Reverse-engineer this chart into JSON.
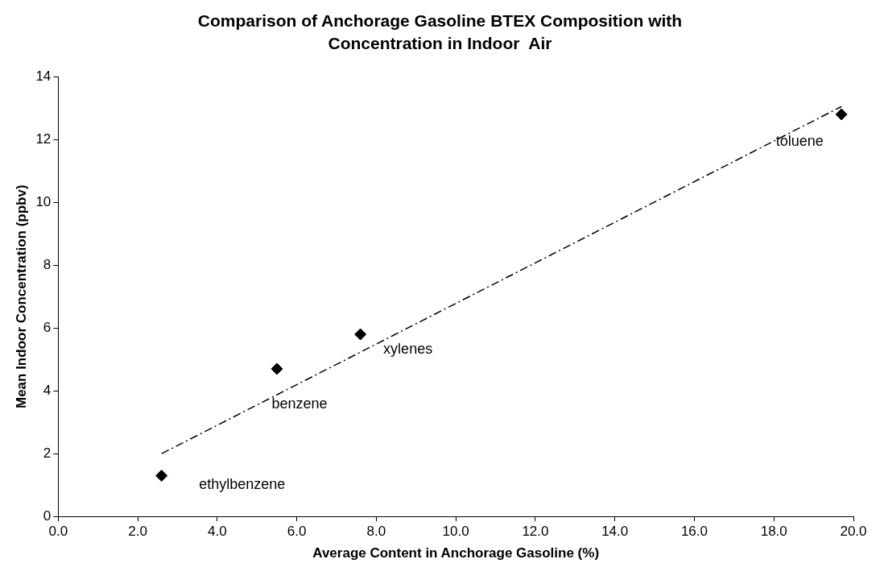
{
  "chart_data": {
    "type": "scatter",
    "title": "Comparison of Anchorage Gasoline BTEX Composition with Concentration in Indoor  Air",
    "xlabel": "Average Content in Anchorage Gasoline (%)",
    "ylabel": "Mean Indoor Concentration (ppbv)",
    "series": [
      {
        "color": "#000000",
        "marker": "diamond",
        "x": [
          2.6,
          5.5,
          7.6,
          19.7
        ],
        "values": [
          1.3,
          4.7,
          5.8,
          12.8
        ]
      },
      {
        "type": "line",
        "color": "#000000",
        "marker": "none",
        "line_style": "dashed",
        "x": [
          2.6,
          19.7
        ],
        "values": [
          2.0,
          13.05
        ]
      }
    ],
    "annotations": [
      {
        "text": "ethylbenzene",
        "x": 2.6,
        "y": 1.3
      },
      {
        "text": "benzene",
        "x": 5.5,
        "y": 4.7
      },
      {
        "text": "xylenes",
        "x": 7.6,
        "y": 5.8
      },
      {
        "text": "toluene",
        "x": 19.7,
        "y": 12.8
      }
    ],
    "xlim": [
      0,
      20
    ],
    "xticks": [
      {
        "value": 0,
        "label": "0.0"
      },
      {
        "value": 2,
        "label": "2.0"
      },
      {
        "value": 4,
        "label": "4.0"
      },
      {
        "value": 6,
        "label": "6.0"
      },
      {
        "value": 8,
        "label": "8.0"
      },
      {
        "value": 10,
        "label": "10.0"
      },
      {
        "value": 12,
        "label": "12.0"
      },
      {
        "value": 14,
        "label": "14.0"
      },
      {
        "value": 16,
        "label": "16.0"
      },
      {
        "value": 18,
        "label": "18.0"
      },
      {
        "value": 20,
        "label": "20.0"
      }
    ],
    "ylim": [
      0,
      14
    ],
    "yticks": [
      0,
      2,
      4,
      6,
      8,
      10,
      12,
      14
    ],
    "grid": false,
    "legend": false
  }
}
